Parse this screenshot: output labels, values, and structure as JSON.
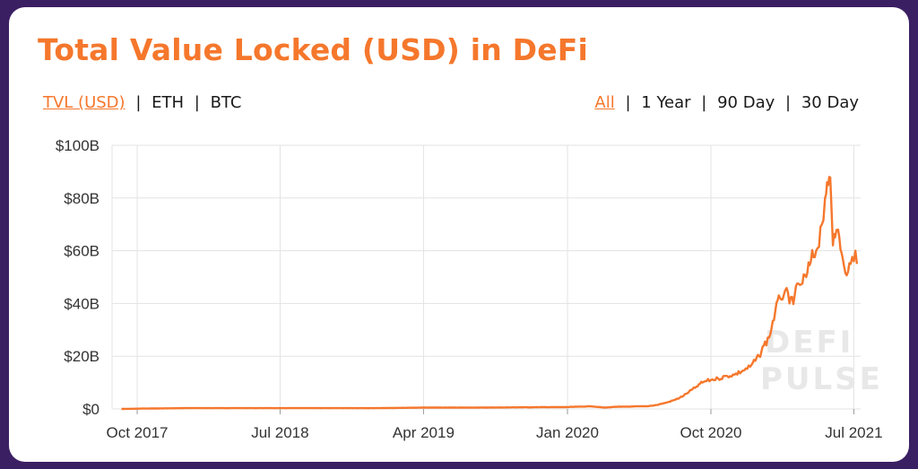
{
  "title": "Total Value Locked (USD) in DeFi",
  "metric_options": [
    {
      "label": "TVL (USD)",
      "active": true
    },
    {
      "label": "ETH",
      "active": false
    },
    {
      "label": "BTC",
      "active": false
    }
  ],
  "range_options": [
    {
      "label": "All",
      "active": true
    },
    {
      "label": "1 Year",
      "active": false
    },
    {
      "label": "90 Day",
      "active": false
    },
    {
      "label": "30 Day",
      "active": false
    }
  ],
  "separator": "|",
  "watermark": {
    "line1": "DEFI",
    "line2": "PULSE"
  },
  "colors": {
    "accent": "#f5772c",
    "background": "#3b1f63",
    "grid": "#e3e3e3"
  },
  "chart_data": {
    "type": "line",
    "title": "Total Value Locked (USD) in DeFi",
    "xlabel": "",
    "ylabel": "",
    "ylim": [
      0,
      100
    ],
    "y_unit": "billion USD",
    "y_ticks": [
      "$0",
      "$20B",
      "$40B",
      "$60B",
      "$80B",
      "$100B"
    ],
    "x_ticks": [
      "Oct 2017",
      "Jul 2018",
      "Apr 2019",
      "Jan 2020",
      "Oct 2020",
      "Jul 2021"
    ],
    "grid": true,
    "legend": "none",
    "series": [
      {
        "color": "#f5772c",
        "x": [
          "2017-09-01",
          "2017-10-01",
          "2018-01-01",
          "2018-04-01",
          "2018-07-01",
          "2018-10-01",
          "2019-01-01",
          "2019-04-01",
          "2019-07-01",
          "2019-10-01",
          "2020-01-01",
          "2020-02-15",
          "2020-03-12",
          "2020-04-01",
          "2020-05-01",
          "2020-06-01",
          "2020-06-20",
          "2020-07-10",
          "2020-07-25",
          "2020-08-10",
          "2020-08-20",
          "2020-09-01",
          "2020-09-10",
          "2020-09-20",
          "2020-10-01",
          "2020-10-15",
          "2020-11-01",
          "2020-11-15",
          "2020-12-01",
          "2020-12-15",
          "2021-01-01",
          "2021-01-10",
          "2021-01-20",
          "2021-02-01",
          "2021-02-10",
          "2021-02-20",
          "2021-02-28",
          "2021-03-10",
          "2021-03-20",
          "2021-04-01",
          "2021-04-10",
          "2021-04-20",
          "2021-05-01",
          "2021-05-07",
          "2021-05-11",
          "2021-05-15",
          "2021-05-19",
          "2021-05-22",
          "2021-05-26",
          "2021-06-01",
          "2021-06-10",
          "2021-06-20",
          "2021-06-25",
          "2021-07-01",
          "2021-07-04",
          "2021-07-07"
        ],
        "values": [
          0.0,
          0.1,
          0.3,
          0.3,
          0.3,
          0.3,
          0.3,
          0.5,
          0.5,
          0.6,
          0.7,
          1.0,
          0.5,
          0.8,
          0.9,
          1.0,
          1.5,
          2.5,
          3.5,
          5.0,
          6.5,
          8.0,
          9.5,
          10.5,
          11.0,
          11.5,
          12.5,
          13.0,
          14.5,
          16.0,
          20.0,
          24.0,
          27.0,
          37.0,
          42.0,
          45.0,
          40.0,
          43.0,
          47.0,
          50.0,
          56.0,
          60.0,
          70.0,
          80.0,
          86.0,
          88.0,
          78.0,
          62.0,
          65.0,
          68.0,
          57.0,
          52.0,
          55.0,
          56.0,
          60.0,
          55.0
        ]
      }
    ]
  }
}
